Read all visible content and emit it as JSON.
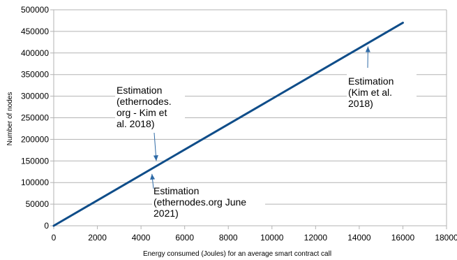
{
  "chart_data": {
    "type": "line",
    "title": "",
    "xlabel": "Energy consumed (Joules) for an average smart contract call",
    "ylabel": "Number of nodes",
    "xlim": [
      0,
      18000
    ],
    "ylim": [
      0,
      500000
    ],
    "x_ticks": [
      "0",
      "2000",
      "4000",
      "6000",
      "8000",
      "10000",
      "12000",
      "14000",
      "16000",
      "18000"
    ],
    "y_ticks": [
      "0",
      "50000",
      "100000",
      "150000",
      "200000",
      "250000",
      "300000",
      "350000",
      "400000",
      "450000",
      "500000"
    ],
    "grid": "horizontal",
    "series": [
      {
        "x": [
          0,
          16000
        ],
        "y": [
          0,
          470000
        ],
        "color": "#0f4d89"
      }
    ],
    "annotations": [
      {
        "lines": [
          "Estimation",
          "(ethernodes.",
          "org - Kim et",
          "al. 2018)"
        ],
        "target": [
          4700,
          150000
        ]
      },
      {
        "lines": [
          "Estimation",
          "(ethernodes.org June",
          "2021)"
        ],
        "target": [
          4500,
          120000
        ]
      },
      {
        "lines": [
          "Estimation",
          "(Kim et al.",
          "2018)"
        ],
        "target": [
          14400,
          415000
        ]
      }
    ]
  }
}
